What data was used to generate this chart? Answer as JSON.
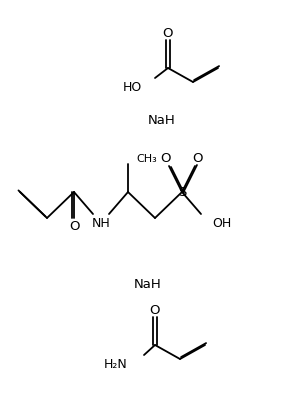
{
  "bg_color": "#ffffff",
  "text_color": "#000000",
  "line_color": "#000000",
  "line_width": 1.3,
  "figsize": [
    2.97,
    3.95
  ],
  "dpi": 100,
  "labels": {
    "NaH": "NaH",
    "O1": "O",
    "HO": "HO",
    "NH": "NH",
    "O2": "O",
    "S": "S",
    "O3": "O",
    "O4": "O",
    "OH": "OH",
    "H2N": "H₂N",
    "O5": "O",
    "CH3": "CH₃"
  }
}
